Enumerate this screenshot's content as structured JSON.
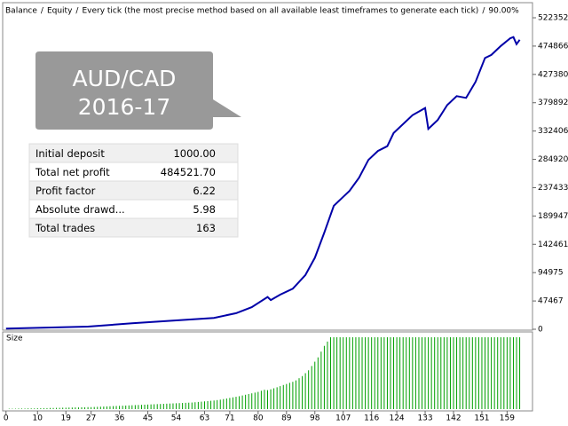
{
  "chart_data": [
    {
      "type": "line",
      "legend": [
        {
          "name": "Balance",
          "color": "#2040d0"
        },
        {
          "name": "Equity",
          "color": "#00a000"
        }
      ],
      "separator": "/",
      "subtitle": "Every tick (the most precise method based on all available least timeframes to generate each tick)",
      "quality": "90.00%",
      "series": [
        {
          "name": "Balance",
          "color": "#0000a8",
          "x": [
            0,
            26,
            40,
            66,
            73,
            78,
            83,
            84,
            87,
            91,
            95,
            98,
            101,
            104,
            107,
            109,
            112,
            115,
            118,
            121,
            123,
            129,
            133,
            134,
            137,
            140,
            143,
            146,
            149,
            152,
            154,
            157,
            160,
            161,
            162,
            163
          ],
          "values": [
            1000,
            4500,
            10000,
            19000,
            27000,
            37000,
            54000,
            49000,
            58000,
            68000,
            91000,
            120000,
            162000,
            207000,
            222000,
            232000,
            254000,
            284000,
            299000,
            307000,
            329000,
            359000,
            371000,
            336000,
            351000,
            376000,
            391000,
            388000,
            415000,
            455000,
            460000,
            475000,
            488000,
            490000,
            478000,
            485522
          ]
        }
      ],
      "xlim": [
        -0.5,
        166.5
      ],
      "xticks": [
        0,
        10,
        19,
        27,
        36,
        45,
        54,
        63,
        71,
        80,
        89,
        98,
        107,
        116,
        124,
        133,
        142,
        151,
        159
      ],
      "ylim": [
        0,
        544700
      ],
      "yticks": [
        0,
        47467,
        94975,
        142461,
        189947,
        237433,
        284920,
        332406,
        379892,
        427380,
        474866,
        522352
      ]
    },
    {
      "type": "bar",
      "title": "Size",
      "color": "#00a000",
      "values": [
        0.3,
        0.3,
        0.3,
        0.4,
        0.4,
        0.4,
        0.5,
        0.5,
        0.5,
        0.6,
        0.6,
        0.7,
        0.7,
        0.8,
        0.8,
        0.9,
        0.9,
        1.0,
        1.0,
        1.1,
        1.1,
        1.2,
        1.2,
        1.3,
        1.3,
        1.4,
        1.4,
        1.5,
        1.6,
        1.7,
        1.8,
        1.9,
        2.0,
        2.1,
        2.2,
        2.3,
        2.4,
        2.5,
        2.6,
        2.7,
        2.8,
        2.9,
        3.0,
        3.1,
        3.2,
        3.3,
        3.4,
        3.5,
        3.6,
        3.7,
        3.8,
        3.9,
        4.0,
        4.1,
        4.2,
        4.3,
        4.4,
        4.5,
        4.6,
        4.8,
        5.0,
        5.2,
        5.4,
        5.6,
        5.8,
        6.0,
        6.3,
        6.6,
        7.0,
        7.4,
        7.8,
        8.2,
        8.6,
        9.0,
        9.5,
        10.0,
        10.5,
        11.0,
        11.5,
        12.0,
        12.8,
        13.5,
        13.2,
        13.8,
        14.5,
        15.2,
        16.0,
        16.8,
        17.5,
        18.3,
        19.0,
        20.0,
        21.5,
        23.0,
        25.0,
        27.0,
        30.0,
        33.0,
        36.0,
        40.0,
        44.0,
        47.0,
        50,
        50,
        50,
        50,
        50,
        50,
        50,
        50,
        50,
        50,
        50,
        50,
        50,
        50,
        50,
        50,
        50,
        50,
        50,
        50,
        50,
        50,
        50,
        50,
        50,
        50,
        50,
        50,
        50,
        50,
        50,
        50,
        50,
        50,
        50,
        50,
        50,
        50,
        50,
        50,
        50,
        50,
        50,
        50,
        50,
        50,
        50,
        50,
        50,
        50,
        50,
        50,
        50,
        50,
        50,
        50,
        50,
        50,
        50,
        50,
        50
      ]
    }
  ],
  "callout": {
    "lines": [
      "AUD/CAD",
      "2016-17"
    ]
  },
  "table": {
    "rows": [
      [
        "Initial deposit",
        "1000.00"
      ],
      [
        "Total net profit",
        "484521.70"
      ],
      [
        "Profit factor",
        "6.22"
      ],
      [
        "Absolute drawd...",
        "5.98"
      ],
      [
        "Total trades",
        "163"
      ]
    ]
  }
}
